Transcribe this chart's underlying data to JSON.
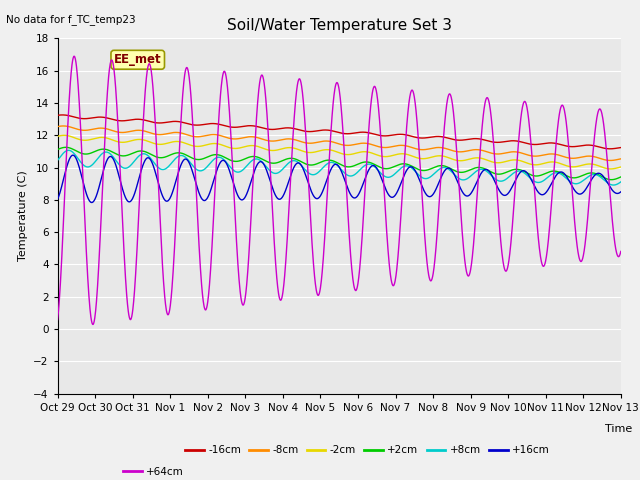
{
  "title": "Soil/Water Temperature Set 3",
  "xlabel": "Time",
  "ylabel": "Temperature (C)",
  "no_data_label": "No data for f_TC_temp23",
  "annotation": "EE_met",
  "ylim": [
    -4,
    18
  ],
  "yticks": [
    -4,
    -2,
    0,
    2,
    4,
    6,
    8,
    10,
    12,
    14,
    16,
    18
  ],
  "xtick_labels": [
    "Oct 29",
    "Oct 30",
    "Oct 31",
    "Nov 1",
    "Nov 2",
    "Nov 3",
    "Nov 4",
    "Nov 5",
    "Nov 6",
    "Nov 7",
    "Nov 8",
    "Nov 9",
    "Nov 10",
    "Nov 11",
    "Nov 12",
    "Nov 13"
  ],
  "series": {
    "neg16cm": {
      "label": "-16cm",
      "color": "#cc0000"
    },
    "neg8cm": {
      "label": "-8cm",
      "color": "#ff8c00"
    },
    "neg2cm": {
      "label": "-2cm",
      "color": "#e8d800"
    },
    "pos2cm": {
      "label": "+2cm",
      "color": "#00cc00"
    },
    "pos8cm": {
      "label": "+8cm",
      "color": "#00cccc"
    },
    "pos16cm": {
      "label": "+16cm",
      "color": "#0000cc"
    },
    "pos64cm": {
      "label": "+64cm",
      "color": "#cc00cc"
    }
  },
  "background_color": "#e8e8e8",
  "grid_color": "#ffffff",
  "fig_bg": "#f0f0f0"
}
